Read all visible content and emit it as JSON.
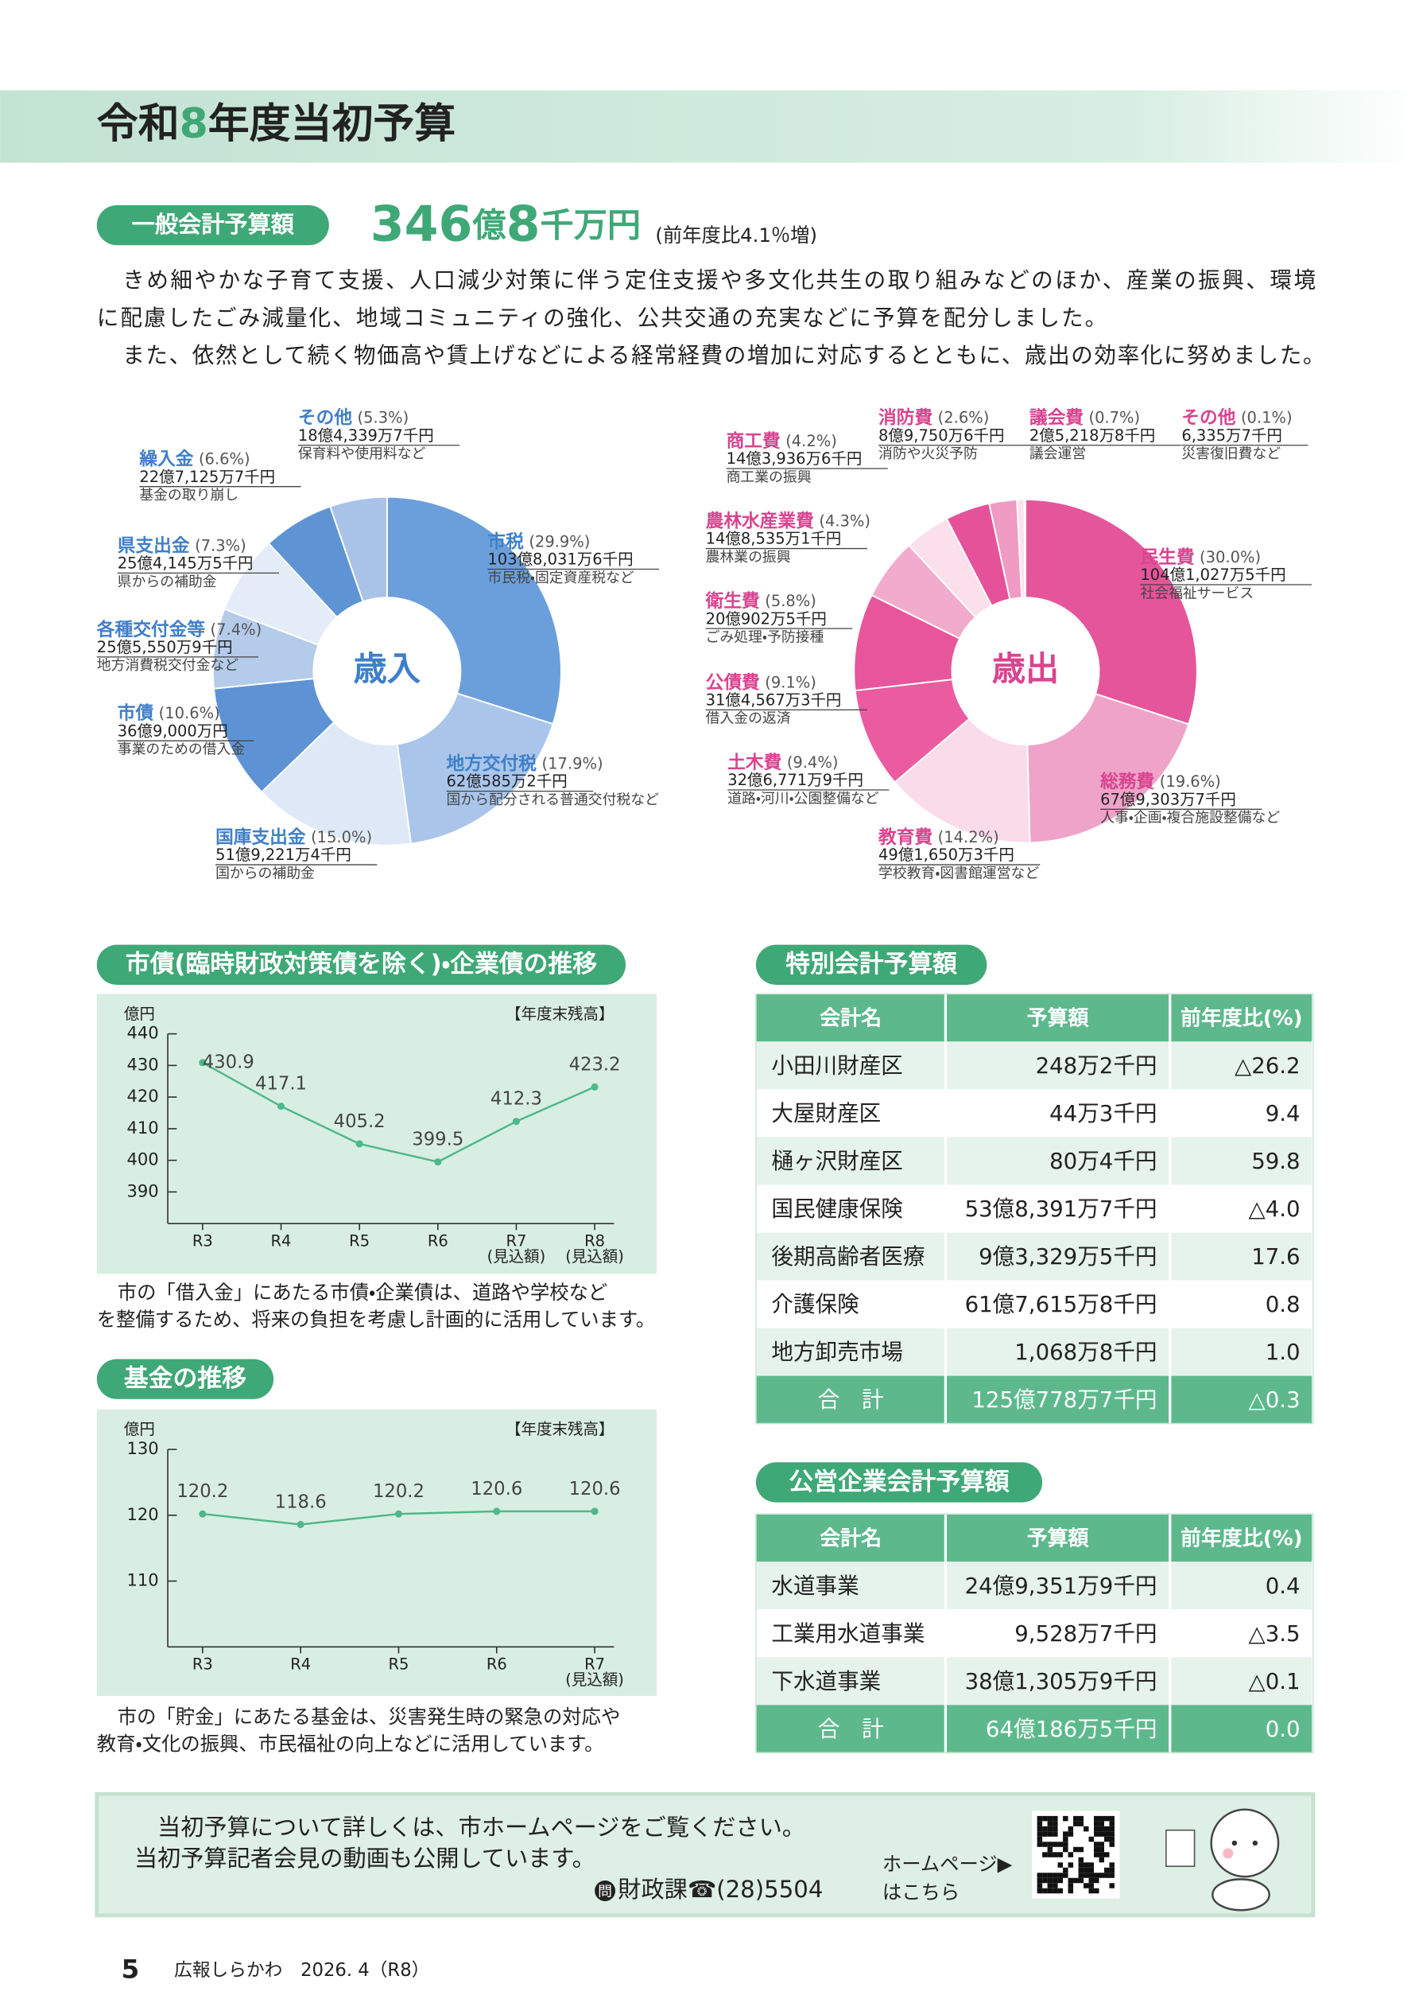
{
  "header": {
    "title_pre": "令和",
    "title_num": "8",
    "title_post": "年度当初予算"
  },
  "general_account": {
    "label": "一般会計予算額",
    "amount_parts": [
      "346",
      "億",
      "8",
      "千万円"
    ],
    "comparison": "(前年度比4.1％増)",
    "paragraph_lines": [
      "きめ細やかな子育て支援、人口減少対策に伴う定住支援や多文化共生の取り組みなどのほか、産業の振興、環境",
      "に配慮したごみ減量化、地域コミュニティの強化、公共交通の充実などに予算を配分しました。",
      "また、依然として続く物価高や賃上げなどによる経常経費の増加に対応するとともに、歳出の効率化に努めました。"
    ]
  },
  "chart_data": [
    {
      "type": "pie",
      "title": "歳入",
      "title_color": "#3f7fc8",
      "label_color": "#3f7fc8",
      "categories": [
        "市税",
        "地方交付税",
        "国庫支出金",
        "市債",
        "各種交付金等",
        "県支出金",
        "繰入金",
        "その他"
      ],
      "values": [
        29.9,
        17.9,
        15.0,
        10.6,
        7.4,
        7.3,
        6.6,
        5.3
      ],
      "value_labels": [
        "(29.9%)",
        "(17.9%)",
        "(15.0%)",
        "(10.6%)",
        "(7.4%)",
        "(7.3%)",
        "(6.6%)",
        "(5.3%)"
      ],
      "amounts": [
        "103億8,031万6千円",
        "62億585万2千円",
        "51億9,221万4千円",
        "36億9,000万円",
        "25億5,550万9千円",
        "25億4,145万5千円",
        "22億7,125万7千円",
        "18億4,339万7千円"
      ],
      "notes": [
        "市民税・固定資産税など",
        "国から配分される普通交付税など",
        "国からの補助金",
        "事業のための借入金",
        "地方消費税交付金など",
        "県からの補助金",
        "基金の取り崩し",
        "保育料や使用料など"
      ],
      "colors": [
        "#6a9fdb",
        "#a9c5ea",
        "#dfe8f6",
        "#5d93d4",
        "#b4cbea",
        "#e4ecf8",
        "#5f94d4",
        "#a9c3e8"
      ]
    },
    {
      "type": "pie",
      "title": "歳出",
      "title_color": "#d9448f",
      "label_color": "#d9448f",
      "categories": [
        "民生費",
        "総務費",
        "教育費",
        "土木費",
        "公債費",
        "衛生費",
        "農林水産業費",
        "商工費",
        "消防費",
        "議会費",
        "その他"
      ],
      "values": [
        30.0,
        19.6,
        14.2,
        9.4,
        9.1,
        5.8,
        4.3,
        4.2,
        2.6,
        0.7,
        0.1
      ],
      "value_labels": [
        "(30.0%)",
        "(19.6%)",
        "(14.2%)",
        "(9.4%)",
        "(9.1%)",
        "(5.8%)",
        "(4.3%)",
        "(4.2%)",
        "(2.6%)",
        "(0.7%)",
        "(0.1%)"
      ],
      "amounts": [
        "104億1,027万5千円",
        "67億9,303万7千円",
        "49億1,650万3千円",
        "32億6,771万9千円",
        "31億4,567万3千円",
        "20億902万5千円",
        "14億8,535万1千円",
        "14億3,936万6千円",
        "8億9,750万6千円",
        "2億5,218万8千円",
        "6,335万7千円"
      ],
      "notes": [
        "社会福祉サービス",
        "人事・企画・複合施設整備など",
        "学校教育・図書館運営など",
        "道路・河川・公園整備など",
        "借入金の返済",
        "ごみ処理・予防接種",
        "農林業の振興",
        "商工業の振興",
        "消防や火災予防",
        "議会運営",
        "災害復旧費など"
      ],
      "colors": [
        "#e5559a",
        "#f0a3c8",
        "#fadbe9",
        "#ea5c9f",
        "#e7559b",
        "#f3abcd",
        "#fbe0ec",
        "#e6529a",
        "#f09bc4",
        "#fbe3ee",
        "#c9287a"
      ]
    },
    {
      "type": "line",
      "title": "市債(臨時財政対策債を除く)・企業債の推移",
      "unit": "億円",
      "note": "【年度末残高】",
      "categories": [
        "R3",
        "R4",
        "R5",
        "R6",
        "R7",
        "R8"
      ],
      "category_notes": [
        null,
        null,
        null,
        null,
        "(見込額)",
        "(見込額)"
      ],
      "values": [
        430.9,
        417.1,
        405.2,
        399.5,
        412.3,
        423.2
      ],
      "color": "#4db88a",
      "ylim": [
        380,
        440
      ],
      "yticks": [
        390,
        400,
        410,
        420,
        430,
        440
      ],
      "caption": [
        "市の「借入金」にあたる市債・企業債は、道路や学校など",
        "を整備するため、将来の負担を考慮し計画的に活用しています。"
      ]
    },
    {
      "type": "line",
      "title": "基金の推移",
      "unit": "億円",
      "note": "【年度末残高】",
      "categories": [
        "R3",
        "R4",
        "R5",
        "R6",
        "R7"
      ],
      "category_notes": [
        null,
        null,
        null,
        null,
        "(見込額)"
      ],
      "values": [
        120.2,
        118.6,
        120.2,
        120.6,
        120.6
      ],
      "color": "#4db88a",
      "ylim": [
        100,
        130
      ],
      "yticks": [
        110,
        120,
        130
      ],
      "caption": [
        "市の「貯金」にあたる基金は、災害発生時の緊急の対応や",
        "教育・文化の振興、市民福祉の向上などに活用しています。"
      ]
    }
  ],
  "tables": [
    {
      "title": "特別会計予算額",
      "header": [
        "会計名",
        "予算額",
        "前年度比(%)"
      ],
      "rows": [
        [
          "小田川財産区",
          "248万2千円",
          "△26.2"
        ],
        [
          "大屋財産区",
          "44万3千円",
          "9.4"
        ],
        [
          "樋ヶ沢財産区",
          "80万4千円",
          "59.8"
        ],
        [
          "国民健康保険",
          "53億8,391万7千円",
          "△4.0"
        ],
        [
          "後期高齢者医療",
          "9億3,329万5千円",
          "17.6"
        ],
        [
          "介護保険",
          "61億7,615万8千円",
          "0.8"
        ],
        [
          "地方卸売市場",
          "1,068万8千円",
          "1.0"
        ]
      ],
      "total": [
        "合　計",
        "125億778万7千円",
        "△0.3"
      ]
    },
    {
      "title": "公営企業会計予算額",
      "header": [
        "会計名",
        "予算額",
        "前年度比(%)"
      ],
      "rows": [
        [
          "水道事業",
          "24億9,351万9千円",
          "0.4"
        ],
        [
          "工業用水道事業",
          "9,528万7千円",
          "△3.5"
        ],
        [
          "下水道事業",
          "38億1,305万9千円",
          "△0.1"
        ]
      ],
      "total": [
        "合　計",
        "64億186万5千円",
        "0.0"
      ]
    }
  ],
  "info_box": {
    "lines": [
      "当初予算について詳しくは、市ホームページをご覧ください。",
      "当初予算記者会見の動画も公開しています。"
    ],
    "contact_icon": "問",
    "contact": "財政課☎(28)5504",
    "link_lines": [
      "ホームページ▶",
      "はこちら"
    ]
  },
  "page_footer": {
    "page": "5",
    "publication": "広報しらかわ　2026. 4（R8）"
  }
}
